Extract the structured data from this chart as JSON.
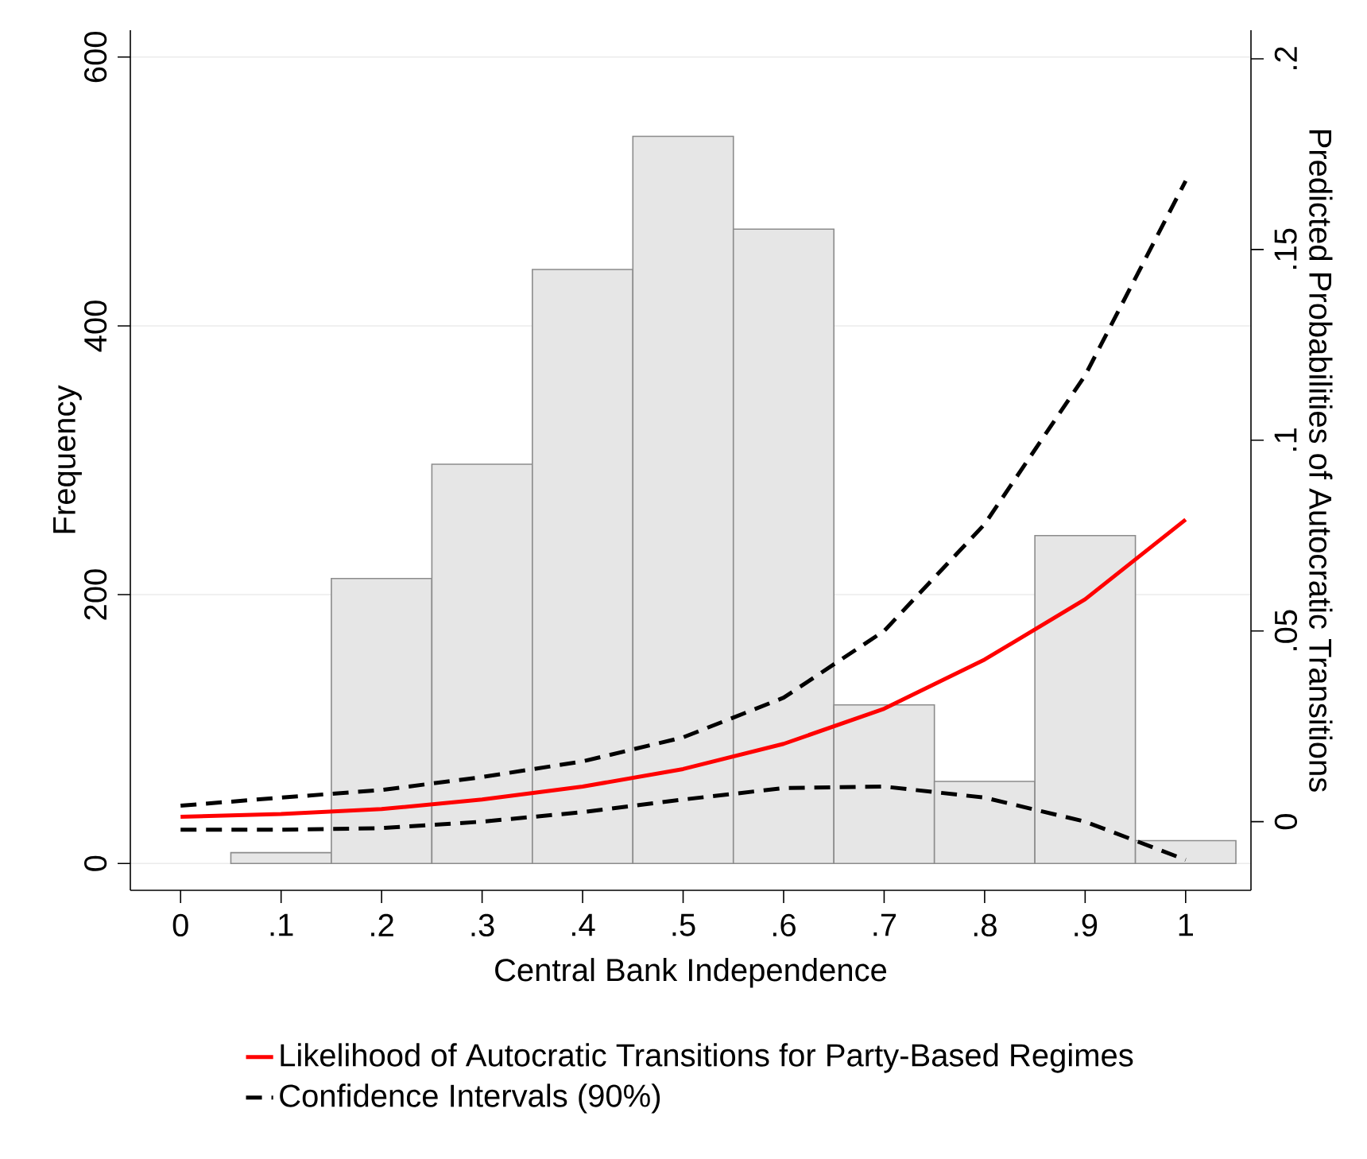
{
  "chart_data": {
    "type": "histogram",
    "xlabel": "Central Bank Independence",
    "ylabel": "Frequency",
    "y2label": "Predicted Probabilities of Autocratic Transitions",
    "bins": [
      0.05,
      0.15,
      0.25,
      0.35,
      0.45,
      0.55,
      0.65,
      0.75,
      0.85,
      0.95,
      1.05
    ],
    "values": [
      8,
      212,
      297,
      442,
      541,
      472,
      118,
      61,
      244,
      17
    ],
    "color": "#e6e6e6",
    "xlim": [
      -0.05,
      1.065
    ],
    "ylim": [
      -20,
      620
    ],
    "y2lim": [
      -0.018,
      0.2075
    ],
    "xticks": [
      0,
      {
        "value": 0.1,
        "label": ".1"
      },
      {
        "value": 0.2,
        "label": ".2"
      },
      {
        "value": 0.3,
        "label": ".3"
      },
      {
        "value": 0.4,
        "label": ".4"
      },
      {
        "value": 0.5,
        "label": ".5"
      },
      {
        "value": 0.6,
        "label": ".6"
      },
      {
        "value": 0.7,
        "label": ".7"
      },
      {
        "value": 0.8,
        "label": ".8"
      },
      {
        "value": 0.9,
        "label": ".9"
      },
      1
    ],
    "yticks": [
      0,
      200,
      400,
      600
    ],
    "y2ticks": [
      0,
      {
        "value": 0.05,
        "label": ".05"
      },
      {
        "value": 0.1,
        "label": ".1"
      },
      {
        "value": 0.15,
        "label": ".15"
      },
      {
        "value": 0.2,
        "label": ".2"
      }
    ],
    "grid": "y",
    "legend": "bottom",
    "series": [
      {
        "name": "Likelihood of Autocratic Transitions for Party-Based Regimes",
        "type": "line",
        "axis": "y2",
        "color": "#ff0000",
        "line_style": "solid",
        "x": [
          0,
          0.1,
          0.2,
          0.3,
          0.4,
          0.5,
          0.6,
          0.7,
          0.8,
          0.9,
          1
        ],
        "values": [
          0.0013,
          0.002,
          0.0033,
          0.0058,
          0.0092,
          0.0138,
          0.0204,
          0.0296,
          0.0425,
          0.0583,
          0.0792
        ]
      },
      {
        "name": "Confidence Intervals (90%)",
        "type": "line",
        "axis": "y2",
        "color": "#000000",
        "line_style": "dashed",
        "x": [
          0,
          0.1,
          0.2,
          0.3,
          0.4,
          0.5,
          0.6,
          0.7,
          0.8,
          0.9,
          1
        ],
        "values": [
          0.0042,
          0.0063,
          0.0083,
          0.0117,
          0.0158,
          0.0221,
          0.0325,
          0.05,
          0.078,
          0.117,
          0.168
        ]
      },
      {
        "type": "line",
        "axis": "y2",
        "color": "#000000",
        "line_style": "dashed",
        "x": [
          0,
          0.1,
          0.2,
          0.3,
          0.4,
          0.5,
          0.6,
          0.7,
          0.8,
          0.9,
          1
        ],
        "values": [
          -0.0021,
          -0.0021,
          -0.0017,
          0,
          0.0025,
          0.0058,
          0.0088,
          0.0092,
          0.0063,
          0,
          -0.01
        ]
      }
    ]
  }
}
